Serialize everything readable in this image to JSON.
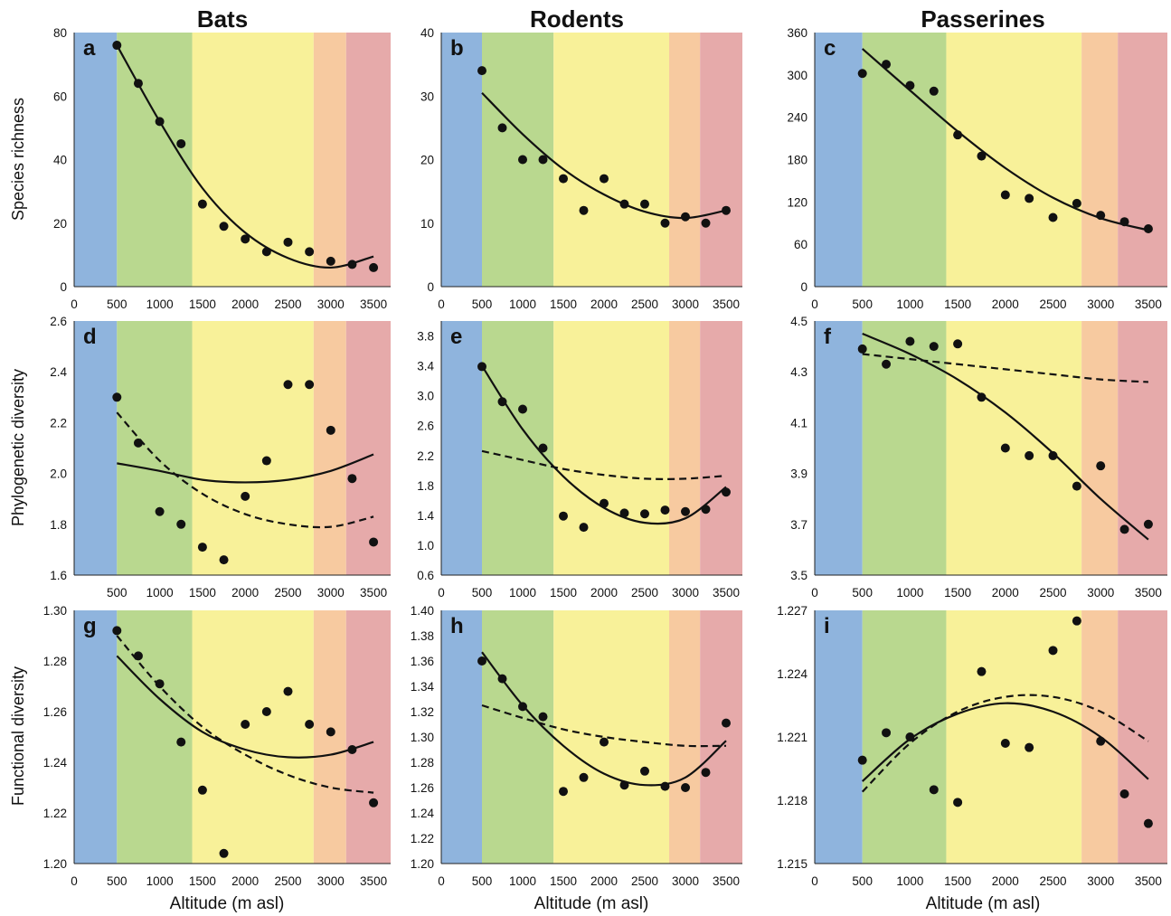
{
  "column_titles": [
    "Bats",
    "Rodents",
    "Passerines"
  ],
  "row_labels": [
    "Species richness",
    "Phylogenetic diversity",
    "Functional diversity"
  ],
  "x_axis_label": "Altitude (m asl)",
  "zone_colors": [
    "#8fb4dd",
    "#b9d88f",
    "#f8f199",
    "#f7caa0",
    "#e6aaaa"
  ],
  "zone_bounds_m": [
    0,
    500,
    1380,
    2800,
    3180,
    3700
  ],
  "chart_data": [
    {
      "panel": "a",
      "type": "scatter",
      "xlim": [
        0,
        3700
      ],
      "ylim": [
        0,
        80
      ],
      "xticks": [
        0,
        500,
        1000,
        1500,
        2000,
        2500,
        3000,
        3500
      ],
      "yticks": [
        0,
        20,
        40,
        60,
        80
      ],
      "points": [
        [
          500,
          76
        ],
        [
          750,
          64
        ],
        [
          1000,
          52
        ],
        [
          1250,
          45
        ],
        [
          1500,
          26
        ],
        [
          1750,
          19
        ],
        [
          2000,
          15
        ],
        [
          2250,
          11
        ],
        [
          2500,
          14
        ],
        [
          2750,
          11
        ],
        [
          3000,
          8
        ],
        [
          3250,
          7
        ],
        [
          3500,
          6
        ]
      ],
      "curves": [
        {
          "style": "solid",
          "points": [
            [
              500,
              76
            ],
            [
              1000,
              52
            ],
            [
              1500,
              31
            ],
            [
              2000,
              17
            ],
            [
              2500,
              9
            ],
            [
              3000,
              6
            ],
            [
              3500,
              9.5
            ]
          ]
        }
      ]
    },
    {
      "panel": "b",
      "type": "scatter",
      "xlim": [
        0,
        3700
      ],
      "ylim": [
        0,
        40
      ],
      "xticks": [
        0,
        500,
        1000,
        1500,
        2000,
        2500,
        3000,
        3500
      ],
      "yticks": [
        0,
        10,
        20,
        30,
        40
      ],
      "points": [
        [
          500,
          34
        ],
        [
          750,
          25
        ],
        [
          1000,
          20
        ],
        [
          1250,
          20
        ],
        [
          1500,
          17
        ],
        [
          1750,
          12
        ],
        [
          2000,
          17
        ],
        [
          2250,
          13
        ],
        [
          2500,
          13
        ],
        [
          2750,
          10
        ],
        [
          3000,
          11
        ],
        [
          3250,
          10
        ],
        [
          3500,
          12
        ]
      ],
      "curves": [
        {
          "style": "solid",
          "points": [
            [
              500,
              30.5
            ],
            [
              1000,
              24
            ],
            [
              1500,
              18.5
            ],
            [
              2000,
              14.5
            ],
            [
              2500,
              11.8
            ],
            [
              3000,
              10.8
            ],
            [
              3500,
              12
            ]
          ]
        }
      ]
    },
    {
      "panel": "c",
      "type": "scatter",
      "xlim": [
        0,
        3700
      ],
      "ylim": [
        0,
        360
      ],
      "xticks": [
        0,
        500,
        1000,
        1500,
        2000,
        2500,
        3000,
        3500
      ],
      "yticks": [
        0,
        60,
        120,
        180,
        240,
        300,
        360
      ],
      "points": [
        [
          500,
          302
        ],
        [
          750,
          315
        ],
        [
          1000,
          285
        ],
        [
          1250,
          277
        ],
        [
          1500,
          215
        ],
        [
          1750,
          185
        ],
        [
          2000,
          130
        ],
        [
          2250,
          125
        ],
        [
          2500,
          98
        ],
        [
          2750,
          118
        ],
        [
          3000,
          101
        ],
        [
          3250,
          92
        ],
        [
          3500,
          82
        ]
      ],
      "curves": [
        {
          "style": "solid",
          "points": [
            [
              500,
              337
            ],
            [
              1000,
              278
            ],
            [
              1500,
              220
            ],
            [
              2000,
              168
            ],
            [
              2500,
              126
            ],
            [
              3000,
              97
            ],
            [
              3500,
              80
            ]
          ]
        }
      ]
    },
    {
      "panel": "d",
      "type": "scatter",
      "xlim": [
        0,
        3700
      ],
      "ylim": [
        1.6,
        2.6
      ],
      "xticks": [
        500,
        1000,
        1500,
        2000,
        2500,
        3000,
        3500
      ],
      "yticks": [
        1.6,
        1.8,
        2.0,
        2.2,
        2.4,
        2.6
      ],
      "points": [
        [
          500,
          2.3
        ],
        [
          750,
          2.12
        ],
        [
          1000,
          1.85
        ],
        [
          1250,
          1.8
        ],
        [
          1500,
          1.71
        ],
        [
          1750,
          1.66
        ],
        [
          2000,
          1.91
        ],
        [
          2250,
          2.05
        ],
        [
          2500,
          2.35
        ],
        [
          2750,
          2.35
        ],
        [
          3000,
          2.17
        ],
        [
          3250,
          1.98
        ],
        [
          3500,
          1.73
        ]
      ],
      "curves": [
        {
          "style": "solid",
          "points": [
            [
              500,
              2.04
            ],
            [
              1000,
              2.01
            ],
            [
              1500,
              1.975
            ],
            [
              2000,
              1.965
            ],
            [
              2500,
              1.975
            ],
            [
              3000,
              2.01
            ],
            [
              3500,
              2.075
            ]
          ]
        },
        {
          "style": "dashed",
          "points": [
            [
              500,
              2.24
            ],
            [
              1000,
              2.05
            ],
            [
              1500,
              1.92
            ],
            [
              2000,
              1.84
            ],
            [
              2500,
              1.8
            ],
            [
              3000,
              1.79
            ],
            [
              3500,
              1.83
            ]
          ]
        }
      ]
    },
    {
      "panel": "e",
      "type": "scatter",
      "xlim": [
        0,
        3700
      ],
      "ylim": [
        0.6,
        4.0
      ],
      "xticks": [
        0,
        500,
        1000,
        1500,
        2000,
        2500,
        3000,
        3500
      ],
      "yticks": [
        0.6,
        1.0,
        1.4,
        1.8,
        2.2,
        2.6,
        3.0,
        3.4,
        3.8
      ],
      "points": [
        [
          500,
          3.39
        ],
        [
          750,
          2.92
        ],
        [
          1000,
          2.82
        ],
        [
          1250,
          2.3
        ],
        [
          1500,
          1.39
        ],
        [
          1750,
          1.24
        ],
        [
          2000,
          1.56
        ],
        [
          2250,
          1.43
        ],
        [
          2500,
          1.42
        ],
        [
          2750,
          1.47
        ],
        [
          3000,
          1.45
        ],
        [
          3250,
          1.48
        ],
        [
          3500,
          1.71
        ]
      ],
      "curves": [
        {
          "style": "solid",
          "points": [
            [
              500,
              3.4
            ],
            [
              1000,
              2.55
            ],
            [
              1500,
              1.92
            ],
            [
              2000,
              1.5
            ],
            [
              2500,
              1.3
            ],
            [
              3000,
              1.36
            ],
            [
              3500,
              1.78
            ]
          ]
        },
        {
          "style": "dashed",
          "points": [
            [
              500,
              2.26
            ],
            [
              1000,
              2.14
            ],
            [
              1500,
              2.02
            ],
            [
              2000,
              1.94
            ],
            [
              2500,
              1.89
            ],
            [
              3000,
              1.89
            ],
            [
              3500,
              1.93
            ]
          ]
        }
      ]
    },
    {
      "panel": "f",
      "type": "scatter",
      "xlim": [
        0,
        3700
      ],
      "ylim": [
        3.5,
        4.5
      ],
      "xticks": [
        0,
        500,
        1000,
        1500,
        2000,
        2500,
        3000,
        3500
      ],
      "yticks": [
        3.5,
        3.7,
        3.9,
        4.1,
        4.3,
        4.5
      ],
      "points": [
        [
          500,
          4.39
        ],
        [
          750,
          4.33
        ],
        [
          1000,
          4.42
        ],
        [
          1250,
          4.4
        ],
        [
          1500,
          4.41
        ],
        [
          1750,
          4.2
        ],
        [
          2000,
          4.0
        ],
        [
          2250,
          3.97
        ],
        [
          2500,
          3.97
        ],
        [
          2750,
          3.85
        ],
        [
          3000,
          3.93
        ],
        [
          3250,
          3.68
        ],
        [
          3500,
          3.7
        ]
      ],
      "curves": [
        {
          "style": "solid",
          "points": [
            [
              500,
              4.45
            ],
            [
              1000,
              4.37
            ],
            [
              1500,
              4.27
            ],
            [
              2000,
              4.14
            ],
            [
              2500,
              3.98
            ],
            [
              3000,
              3.8
            ],
            [
              3500,
              3.64
            ]
          ]
        },
        {
          "style": "dashed",
          "points": [
            [
              500,
              4.37
            ],
            [
              1000,
              4.35
            ],
            [
              1500,
              4.33
            ],
            [
              2000,
              4.31
            ],
            [
              2500,
              4.29
            ],
            [
              3000,
              4.27
            ],
            [
              3500,
              4.26
            ]
          ]
        }
      ]
    },
    {
      "panel": "g",
      "type": "scatter",
      "xlim": [
        0,
        3700
      ],
      "ylim": [
        1.2,
        1.3
      ],
      "xticks": [
        0,
        500,
        1000,
        1500,
        2000,
        2500,
        3000,
        3500
      ],
      "yticks": [
        1.2,
        1.22,
        1.24,
        1.26,
        1.28,
        1.3
      ],
      "points": [
        [
          500,
          1.292
        ],
        [
          750,
          1.282
        ],
        [
          1000,
          1.271
        ],
        [
          1250,
          1.248
        ],
        [
          1500,
          1.229
        ],
        [
          1750,
          1.204
        ],
        [
          2000,
          1.255
        ],
        [
          2250,
          1.26
        ],
        [
          2500,
          1.268
        ],
        [
          2750,
          1.255
        ],
        [
          3000,
          1.252
        ],
        [
          3250,
          1.245
        ],
        [
          3500,
          1.224
        ]
      ],
      "curves": [
        {
          "style": "solid",
          "points": [
            [
              500,
              1.282
            ],
            [
              1000,
              1.265
            ],
            [
              1500,
              1.252
            ],
            [
              2000,
              1.245
            ],
            [
              2500,
              1.242
            ],
            [
              3000,
              1.243
            ],
            [
              3500,
              1.248
            ]
          ]
        },
        {
          "style": "dashed",
          "points": [
            [
              500,
              1.29
            ],
            [
              1000,
              1.27
            ],
            [
              1500,
              1.254
            ],
            [
              2000,
              1.243
            ],
            [
              2500,
              1.235
            ],
            [
              3000,
              1.23
            ],
            [
              3500,
              1.228
            ]
          ]
        }
      ]
    },
    {
      "panel": "h",
      "type": "scatter",
      "xlim": [
        0,
        3700
      ],
      "ylim": [
        1.2,
        1.4
      ],
      "xticks": [
        0,
        500,
        1000,
        1500,
        2000,
        2500,
        3000,
        3500
      ],
      "yticks": [
        1.2,
        1.22,
        1.24,
        1.26,
        1.28,
        1.3,
        1.32,
        1.34,
        1.36,
        1.38,
        1.4
      ],
      "points": [
        [
          500,
          1.36
        ],
        [
          750,
          1.346
        ],
        [
          1000,
          1.324
        ],
        [
          1250,
          1.316
        ],
        [
          1500,
          1.257
        ],
        [
          1750,
          1.268
        ],
        [
          2000,
          1.296
        ],
        [
          2250,
          1.262
        ],
        [
          2500,
          1.273
        ],
        [
          2750,
          1.261
        ],
        [
          3000,
          1.26
        ],
        [
          3250,
          1.272
        ],
        [
          3500,
          1.311
        ]
      ],
      "curves": [
        {
          "style": "solid",
          "points": [
            [
              500,
              1.367
            ],
            [
              1000,
              1.325
            ],
            [
              1500,
              1.293
            ],
            [
              2000,
              1.271
            ],
            [
              2500,
              1.262
            ],
            [
              3000,
              1.268
            ],
            [
              3500,
              1.297
            ]
          ]
        },
        {
          "style": "dashed",
          "points": [
            [
              500,
              1.325
            ],
            [
              1000,
              1.315
            ],
            [
              1500,
              1.306
            ],
            [
              2000,
              1.3
            ],
            [
              2500,
              1.296
            ],
            [
              3000,
              1.293
            ],
            [
              3500,
              1.293
            ]
          ]
        }
      ]
    },
    {
      "panel": "i",
      "type": "scatter",
      "xlim": [
        0,
        3700
      ],
      "ylim": [
        1.215,
        1.227
      ],
      "xticks": [
        0,
        500,
        1000,
        1500,
        2000,
        2500,
        3000,
        3500
      ],
      "yticks": [
        1.215,
        1.218,
        1.221,
        1.224,
        1.227
      ],
      "points": [
        [
          500,
          1.2199
        ],
        [
          750,
          1.2212
        ],
        [
          1000,
          1.221
        ],
        [
          1250,
          1.2185
        ],
        [
          1500,
          1.2179
        ],
        [
          1750,
          1.2241
        ],
        [
          2000,
          1.2207
        ],
        [
          2250,
          1.2205
        ],
        [
          2500,
          1.2251
        ],
        [
          2750,
          1.2265
        ],
        [
          3000,
          1.2208
        ],
        [
          3250,
          1.2183
        ],
        [
          3500,
          1.2169
        ]
      ],
      "curves": [
        {
          "style": "solid",
          "points": [
            [
              500,
              1.2189
            ],
            [
              1000,
              1.2209
            ],
            [
              1500,
              1.2221
            ],
            [
              2000,
              1.2226
            ],
            [
              2500,
              1.2222
            ],
            [
              3000,
              1.221
            ],
            [
              3500,
              1.219
            ]
          ]
        },
        {
          "style": "dashed",
          "points": [
            [
              500,
              1.2184
            ],
            [
              1000,
              1.2207
            ],
            [
              1500,
              1.2222
            ],
            [
              2000,
              1.2229
            ],
            [
              2500,
              1.2229
            ],
            [
              3000,
              1.2222
            ],
            [
              3500,
              1.2208
            ]
          ]
        }
      ]
    }
  ]
}
